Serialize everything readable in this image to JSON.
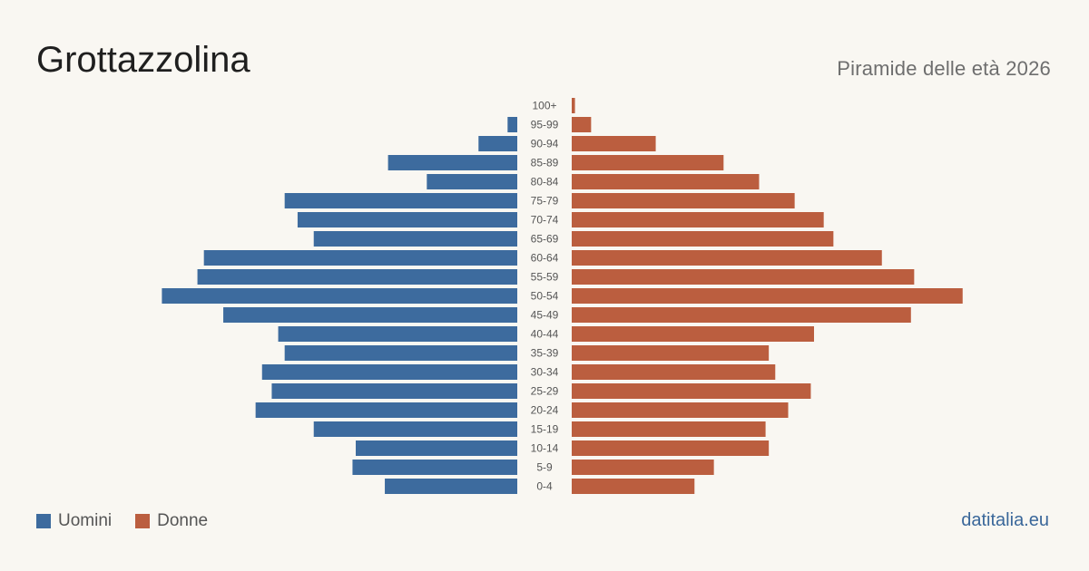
{
  "header": {
    "title": "Grottazzolina",
    "subtitle": "Piramide delle età 2026"
  },
  "legend": {
    "men_label": "Uomini",
    "women_label": "Donne"
  },
  "footer": {
    "source": "datitalia.eu"
  },
  "colors": {
    "men": "#3d6b9e",
    "women": "#bb5e3f",
    "background": "#f9f7f2",
    "age_label": "#555555"
  },
  "chart_data": {
    "type": "bar",
    "orientation": "horizontal",
    "title": "Piramide delle età 2026",
    "categories": [
      "100+",
      "95-99",
      "90-94",
      "85-89",
      "80-84",
      "75-79",
      "70-74",
      "65-69",
      "60-64",
      "55-59",
      "50-54",
      "45-49",
      "40-44",
      "35-39",
      "30-34",
      "25-29",
      "20-24",
      "15-19",
      "10-14",
      "5-9",
      "0-4"
    ],
    "series": [
      {
        "name": "Uomini",
        "values": [
          0,
          3,
          12,
          40,
          28,
          72,
          68,
          63,
          97,
          99,
          110,
          91,
          74,
          72,
          79,
          76,
          81,
          63,
          50,
          51,
          41
        ]
      },
      {
        "name": "Donne",
        "values": [
          1,
          6,
          26,
          47,
          58,
          69,
          78,
          81,
          96,
          106,
          121,
          105,
          75,
          61,
          63,
          74,
          67,
          60,
          61,
          44,
          38
        ]
      }
    ],
    "grid": false,
    "legend_position": "bottom-left"
  }
}
